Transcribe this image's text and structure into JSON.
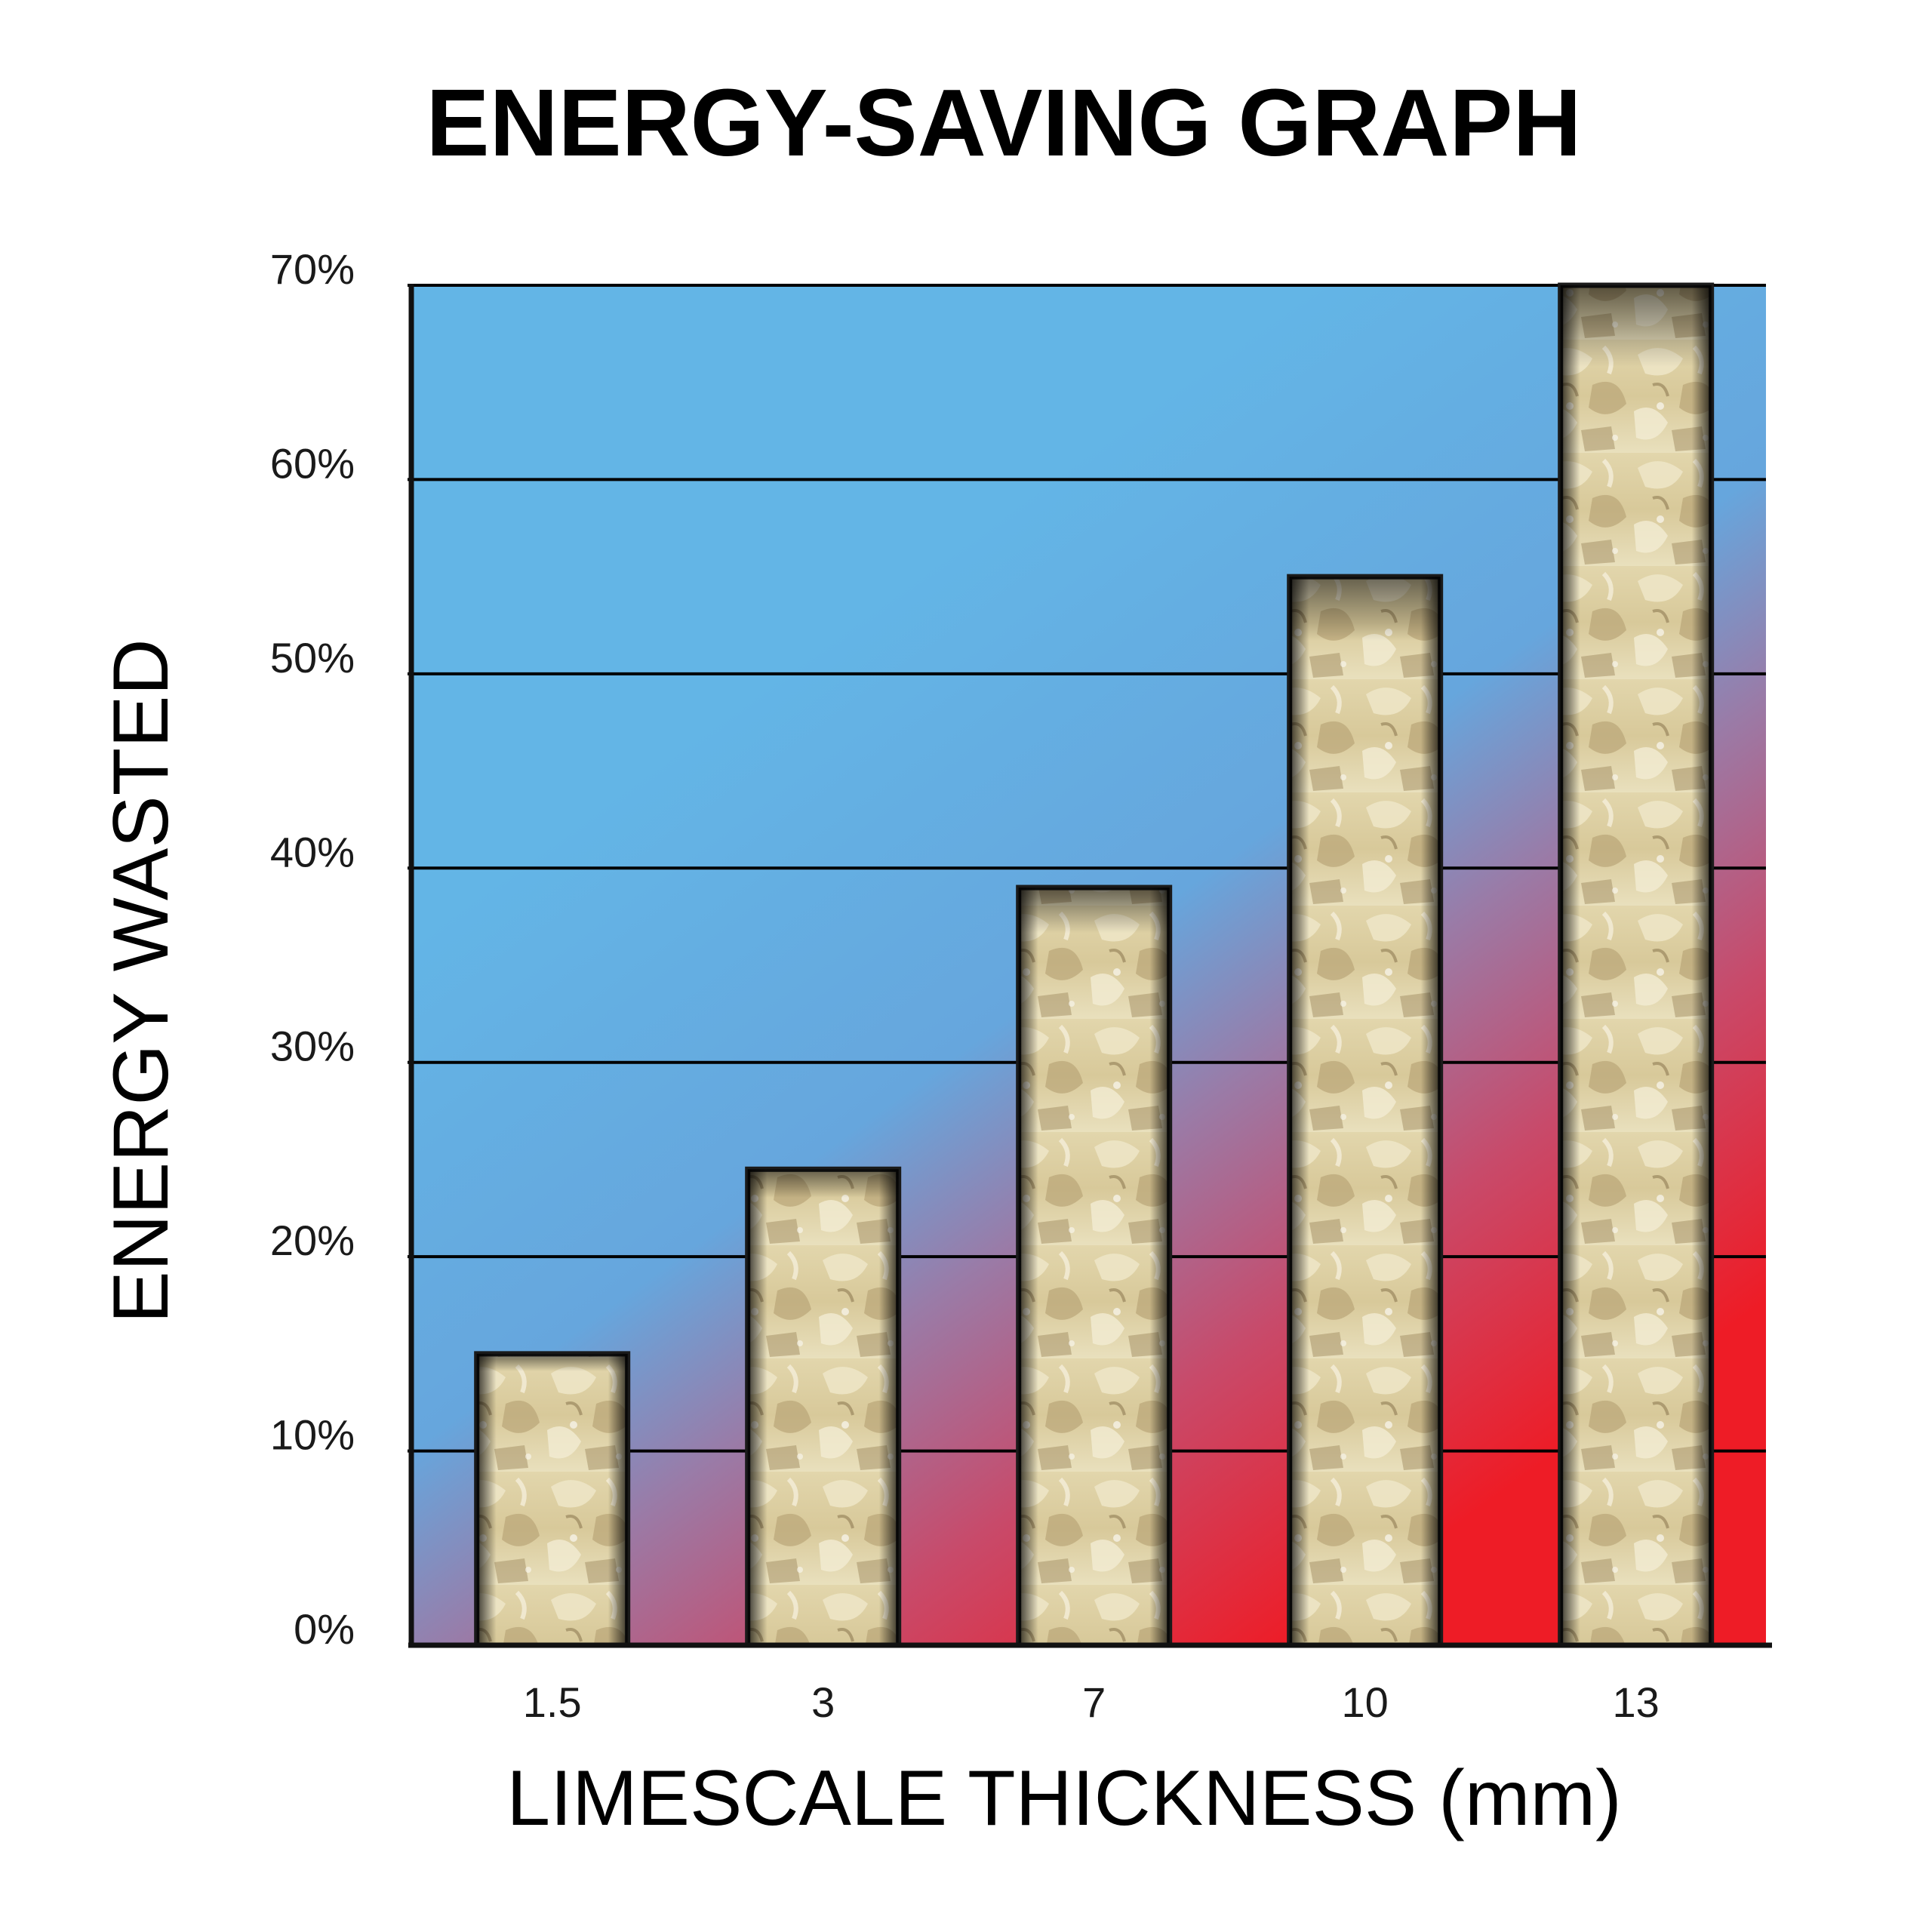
{
  "chart_data": {
    "type": "bar",
    "title": "ENERGY-SAVING GRAPH",
    "xlabel": "LIMESCALE THICKNESS (mm)",
    "ylabel": "ENERGY WASTED",
    "categories": [
      "1.5",
      "3",
      "7",
      "10",
      "13"
    ],
    "values": [
      15,
      24.5,
      39,
      55,
      70
    ],
    "ylim": [
      0,
      70
    ],
    "yticks": [
      0,
      10,
      20,
      30,
      40,
      50,
      60,
      70
    ],
    "ytick_labels": [
      "0%",
      "10%",
      "20%",
      "30%",
      "40%",
      "50%",
      "60%",
      "70%"
    ],
    "grid": true,
    "legend": "none"
  },
  "colors": {
    "background_top": "#62b4e6",
    "background_mid": "#9a78a6",
    "background_bottom": "#ee1c26",
    "bar_fill_light": "#e6dcb6",
    "bar_fill_dark": "#9c8a5c",
    "bar_border": "#1a1a1a",
    "grid": "#000000"
  }
}
